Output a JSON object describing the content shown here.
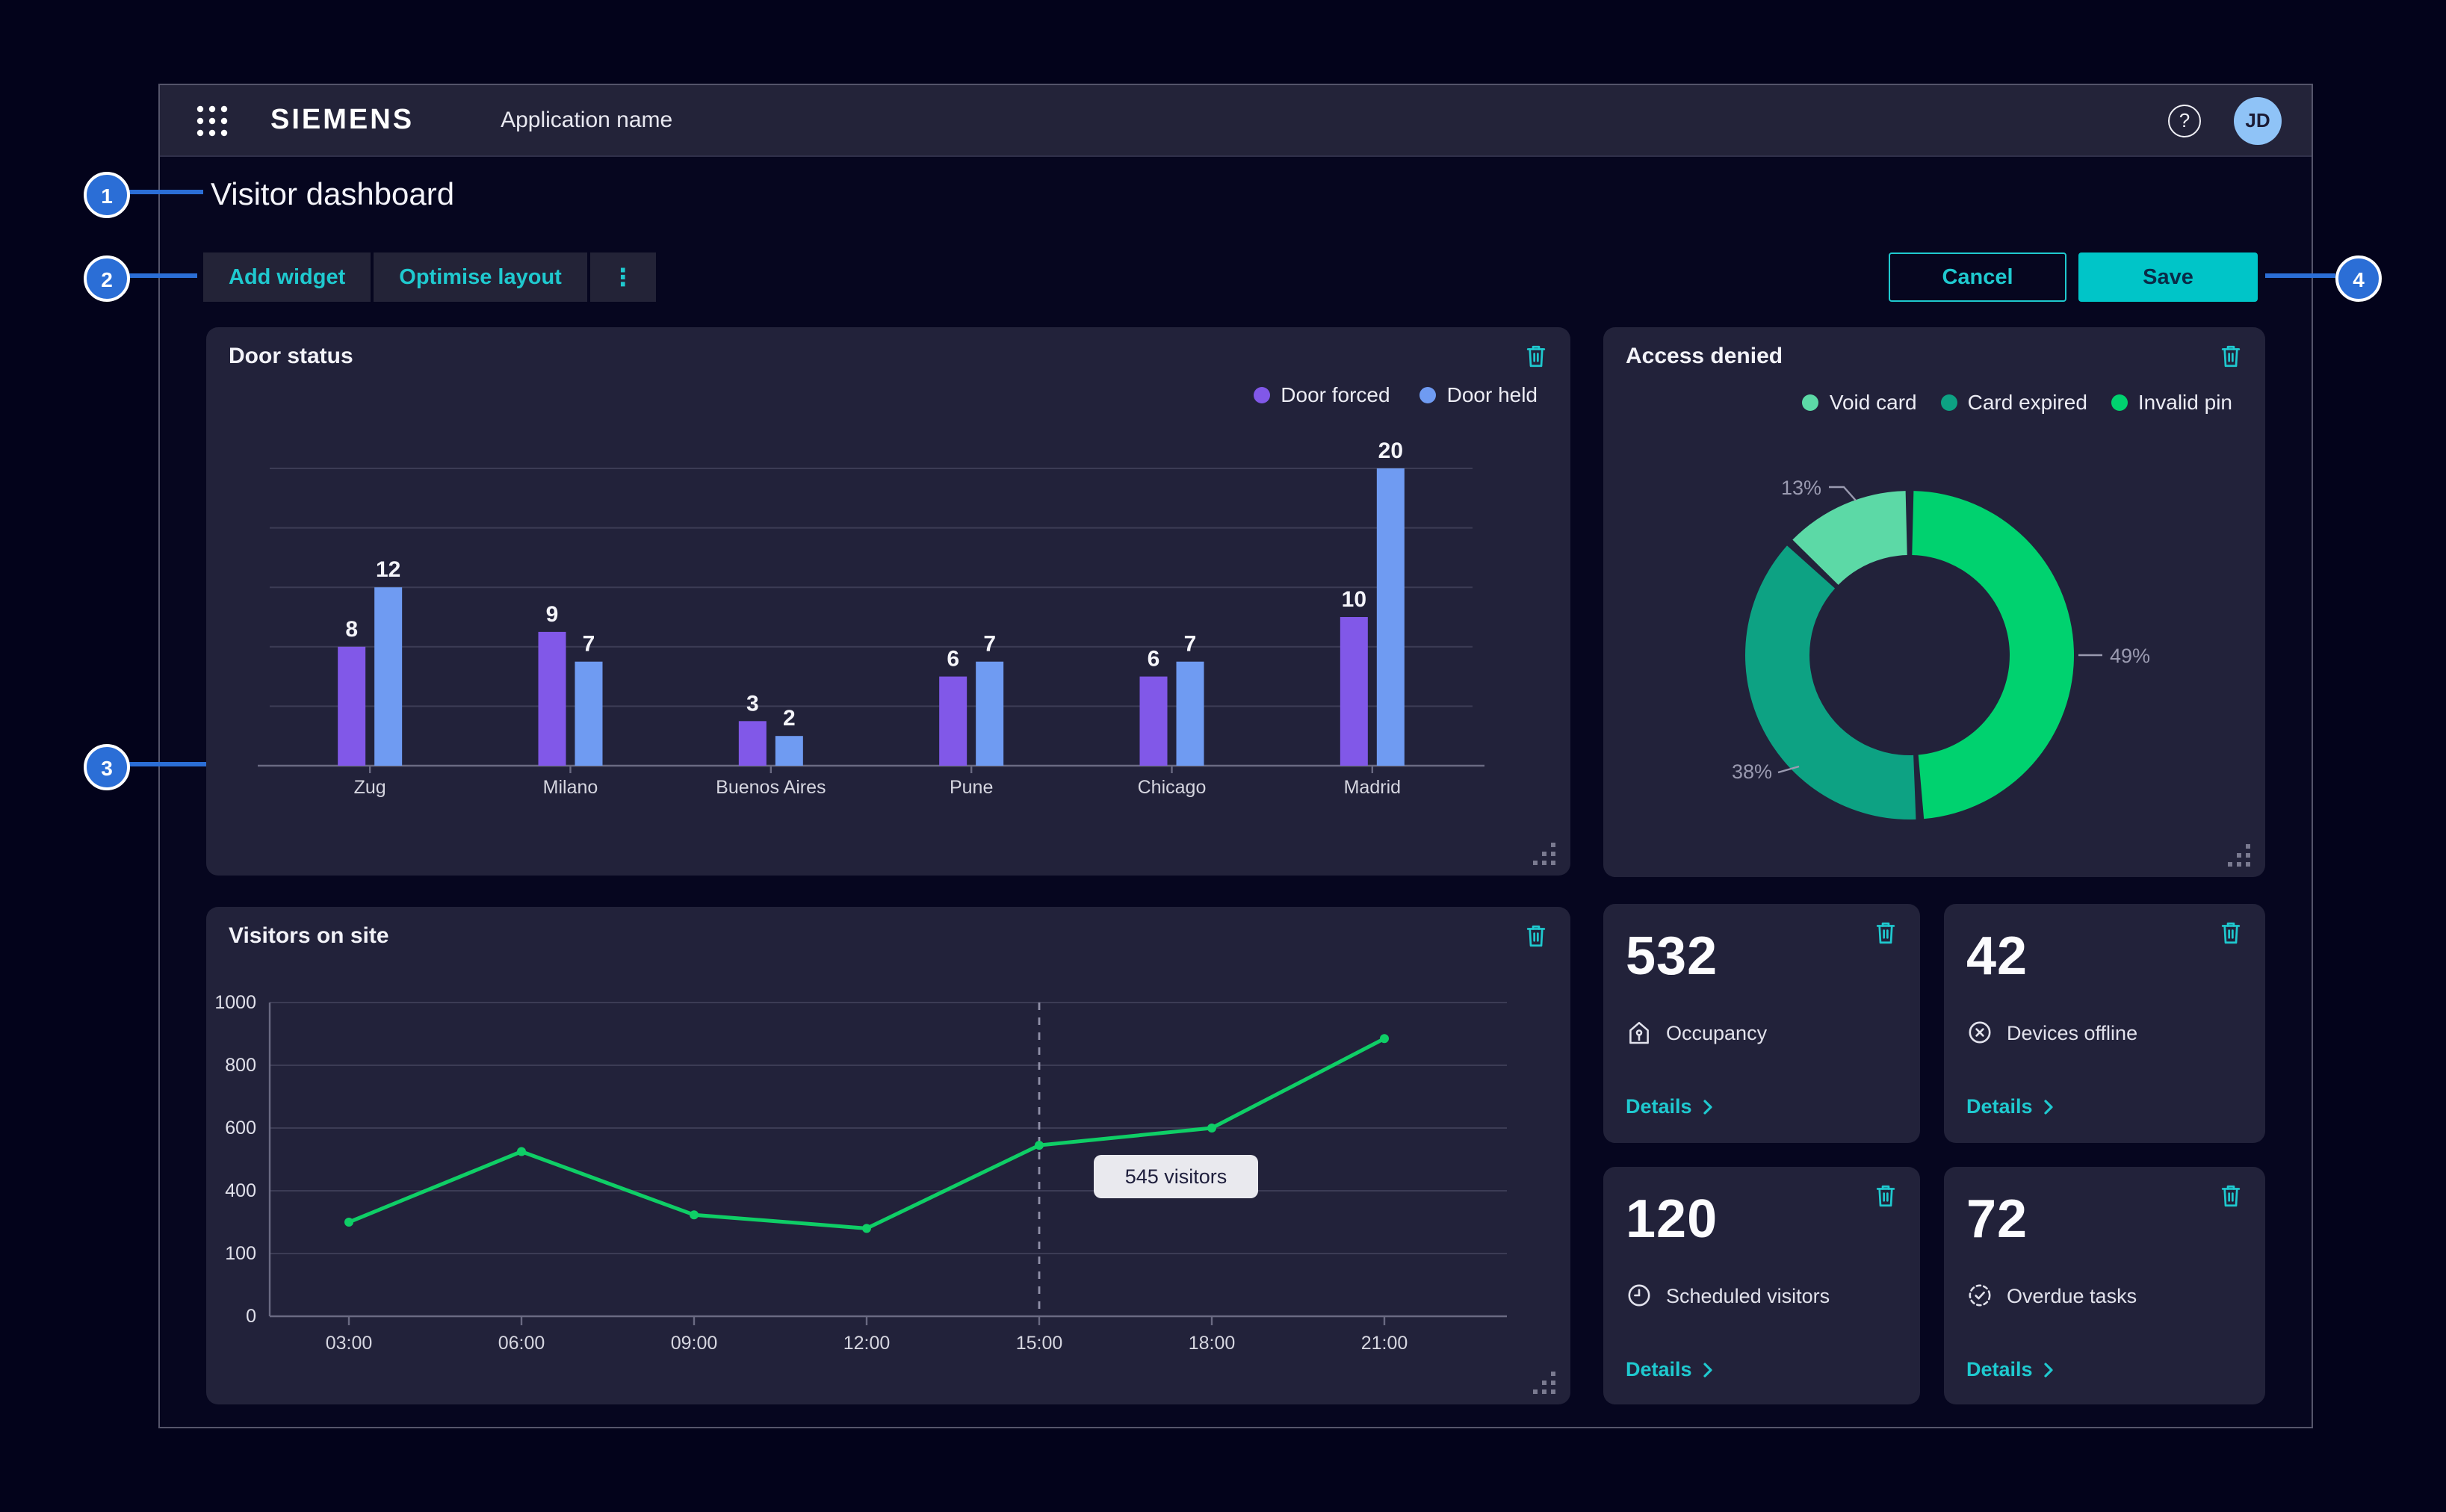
{
  "topbar": {
    "logo": "SIEMENS",
    "app_name": "Application name",
    "help_label": "?",
    "avatar_initials": "JD"
  },
  "page": {
    "title": "Visitor dashboard"
  },
  "toolbar": {
    "add_widget": "Add widget",
    "optimise_layout": "Optimise layout",
    "kebab": "⋮",
    "cancel": "Cancel",
    "save": "Save"
  },
  "callouts": [
    "1",
    "2",
    "3",
    "4"
  ],
  "widgets": {
    "door_status": {
      "title": "Door status"
    },
    "access_denied": {
      "title": "Access denied"
    },
    "visitors": {
      "title": "Visitors on site",
      "tooltip": "545 visitors"
    }
  },
  "kpis": [
    {
      "value": "532",
      "label": "Occupancy",
      "details": "Details",
      "icon": "occupancy-icon"
    },
    {
      "value": "42",
      "label": "Devices offline",
      "details": "Details",
      "icon": "device-offline-icon"
    },
    {
      "value": "120",
      "label": "Scheduled visitors",
      "details": "Details",
      "icon": "clock-icon"
    },
    {
      "value": "72",
      "label": "Overdue tasks",
      "details": "Details",
      "icon": "task-check-icon"
    }
  ],
  "colors": {
    "accent_teal": "#1FC9CF",
    "save_fill": "#00C5C8",
    "callout_blue": "#2B6ED6",
    "card_bg": "#22223A",
    "bar_purple": "#8158E8",
    "bar_blue": "#6F9BF2",
    "line_green": "#0FCE66",
    "donut_invalid_pin": "#00D26F",
    "donut_card_expired": "#0DA283",
    "donut_void_card": "#5CD9A6",
    "gridline": "#3C3C55",
    "axis": "#6A6A82"
  },
  "chart_data": [
    {
      "id": "door_status",
      "type": "bar",
      "title": "Door status",
      "categories": [
        "Zug",
        "Milano",
        "Buenos Aires",
        "Pune",
        "Chicago",
        "Madrid"
      ],
      "series": [
        {
          "name": "Door forced",
          "color": "#8158E8",
          "values": [
            8,
            9,
            3,
            6,
            6,
            10
          ]
        },
        {
          "name": "Door held",
          "color": "#6F9BF2",
          "values": [
            12,
            7,
            2,
            7,
            7,
            20
          ]
        }
      ],
      "ylim": [
        0,
        20
      ],
      "grid": true,
      "value_labels": true,
      "legend_position": "top-right"
    },
    {
      "id": "access_denied",
      "type": "pie",
      "title": "Access denied",
      "donut": true,
      "start": "12 o'clock, clockwise",
      "slices": [
        {
          "label": "Invalid pin",
          "value": 49,
          "color": "#00D26F"
        },
        {
          "label": "Card expired",
          "value": 38,
          "color": "#0DA283"
        },
        {
          "label": "Void card",
          "value": 13,
          "color": "#5CD9A6"
        }
      ],
      "legend_order": [
        "Void card",
        "Card expired",
        "Invalid pin"
      ],
      "legend_position": "top-right",
      "percent_labels": [
        "49%",
        "38%",
        "13%"
      ]
    },
    {
      "id": "visitors_on_site",
      "type": "line",
      "title": "Visitors on site",
      "x": [
        "03:00",
        "06:00",
        "09:00",
        "12:00",
        "15:00",
        "18:00",
        "21:00"
      ],
      "values": [
        250,
        525,
        285,
        220,
        545,
        600,
        885
      ],
      "y_tick_labels": [
        1000,
        800,
        600,
        400,
        100,
        0
      ],
      "ylim": [
        0,
        1000
      ],
      "grid": true,
      "line_color": "#0FCE66",
      "tooltip": {
        "x": "15:00",
        "text": "545 visitors"
      },
      "note": "values estimated from plot; 15:00 point labeled 545 by tooltip"
    }
  ]
}
